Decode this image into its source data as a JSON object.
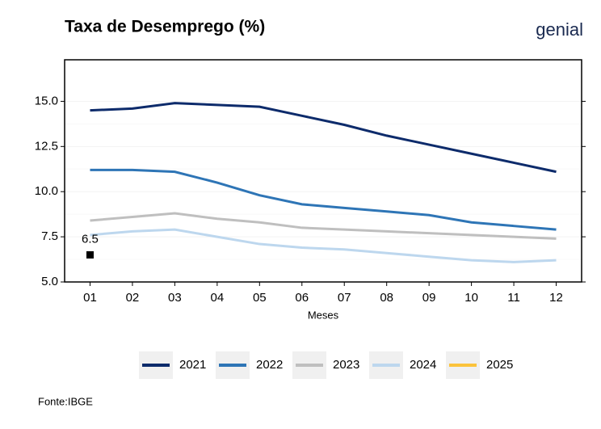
{
  "chart_data": {
    "type": "line",
    "title": "Taxa de Desemprego (%)",
    "logo": "genial",
    "xlabel": "Meses",
    "source": "Fonte:IBGE",
    "categories": [
      "01",
      "02",
      "03",
      "04",
      "05",
      "06",
      "07",
      "08",
      "09",
      "10",
      "11",
      "12"
    ],
    "series": [
      {
        "name": "2021",
        "color": "#0d2b6b",
        "values": [
          14.5,
          14.6,
          14.9,
          14.8,
          14.7,
          14.2,
          13.7,
          13.1,
          12.6,
          12.1,
          11.6,
          11.1
        ]
      },
      {
        "name": "2022",
        "color": "#2e75b6",
        "values": [
          11.2,
          11.2,
          11.1,
          10.5,
          9.8,
          9.3,
          9.1,
          8.9,
          8.7,
          8.3,
          8.1,
          7.9
        ]
      },
      {
        "name": "2023",
        "color": "#bfbfbf",
        "values": [
          8.4,
          8.6,
          8.8,
          8.5,
          8.3,
          8.0,
          7.9,
          7.8,
          7.7,
          7.6,
          7.5,
          7.4
        ]
      },
      {
        "name": "2024",
        "color": "#bdd7ee",
        "values": [
          7.6,
          7.8,
          7.9,
          7.5,
          7.1,
          6.9,
          6.8,
          6.6,
          6.4,
          6.2,
          6.1,
          6.2
        ]
      },
      {
        "name": "2025",
        "color": "#fbc33c",
        "marker_color": "#000000",
        "values": [
          6.5,
          null,
          null,
          null,
          null,
          null,
          null,
          null,
          null,
          null,
          null,
          null
        ]
      }
    ],
    "ylim": [
      5,
      17.3
    ],
    "yticks": [
      {
        "value": 5,
        "label": "5.0"
      },
      {
        "value": 7.5,
        "label": "7.5"
      },
      {
        "value": 10,
        "label": "10.0"
      },
      {
        "value": 12.5,
        "label": "12.5"
      },
      {
        "value": 15,
        "label": "15.0"
      }
    ],
    "grid": true,
    "legend": "bottom"
  }
}
